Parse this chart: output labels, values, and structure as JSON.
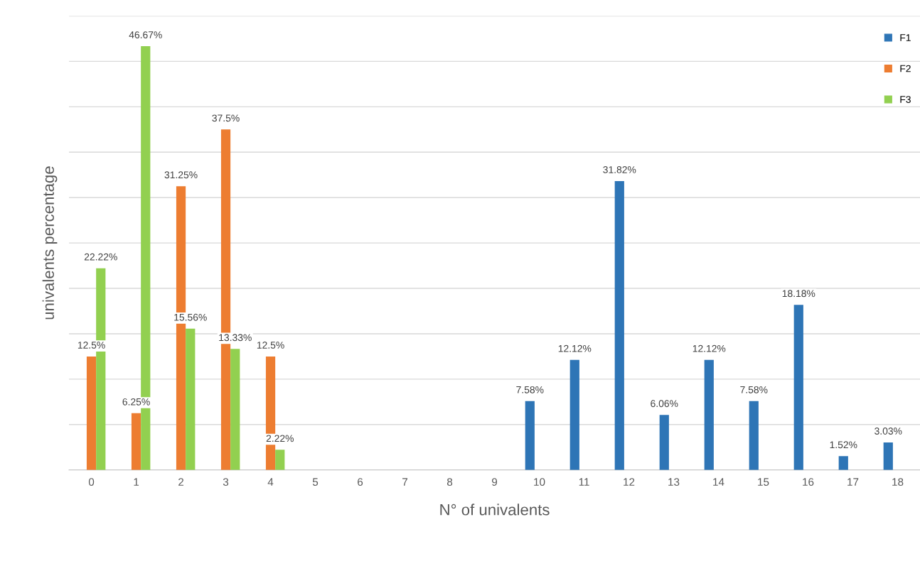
{
  "chart_data": {
    "type": "bar",
    "xlabel": "N° of univalents",
    "ylabel": "univalents percentage",
    "categories": [
      "0",
      "1",
      "2",
      "3",
      "4",
      "5",
      "6",
      "7",
      "8",
      "9",
      "10",
      "11",
      "12",
      "13",
      "14",
      "15",
      "16",
      "17",
      "18"
    ],
    "series": [
      {
        "name": "F1",
        "color": "#2e75b6",
        "values": [
          null,
          null,
          null,
          null,
          null,
          null,
          null,
          null,
          null,
          null,
          7.58,
          12.12,
          31.82,
          6.06,
          12.12,
          7.58,
          18.18,
          1.52,
          3.03
        ],
        "value_labels": [
          null,
          null,
          null,
          null,
          null,
          null,
          null,
          null,
          null,
          null,
          "7.58%",
          "12.12%",
          "31.82%",
          "6.06%",
          "12.12%",
          "7.58%",
          "18.18%",
          "1.52%",
          "3.03%"
        ]
      },
      {
        "name": "F2",
        "color": "#ed7d31",
        "values": [
          12.5,
          6.25,
          31.25,
          37.5,
          12.5,
          null,
          null,
          null,
          null,
          null,
          null,
          null,
          null,
          null,
          null,
          null,
          null,
          null,
          null
        ],
        "value_labels": [
          "12.5%",
          "6.25%",
          "31.25%",
          "37.5%",
          "12.5%",
          null,
          null,
          null,
          null,
          null,
          null,
          null,
          null,
          null,
          null,
          null,
          null,
          null,
          null
        ]
      },
      {
        "name": "F3",
        "color": "#92d050",
        "values": [
          22.22,
          46.67,
          15.56,
          13.33,
          2.22,
          null,
          null,
          null,
          null,
          null,
          null,
          null,
          null,
          null,
          null,
          null,
          null,
          null,
          null
        ],
        "value_labels": [
          "22.22%",
          "46.67%",
          "15.56%",
          "13.33%",
          "2.22%",
          null,
          null,
          null,
          null,
          null,
          null,
          null,
          null,
          null,
          null,
          null,
          null,
          null,
          null
        ]
      }
    ],
    "ylim": [
      0,
      50
    ],
    "yticks": [
      {
        "value": 0,
        "label": null
      },
      {
        "value": 5,
        "label": null
      },
      {
        "value": 10,
        "label": null
      },
      {
        "value": 15,
        "label": null
      },
      {
        "value": 20,
        "label": null
      },
      {
        "value": 25,
        "label": null
      },
      {
        "value": 30,
        "label": null
      },
      {
        "value": 35,
        "label": null
      },
      {
        "value": 40,
        "label": null
      },
      {
        "value": 45,
        "label": null
      },
      {
        "value": 50,
        "label": null
      }
    ],
    "tick_labels": "x",
    "grid": "y",
    "legend": "top right"
  }
}
